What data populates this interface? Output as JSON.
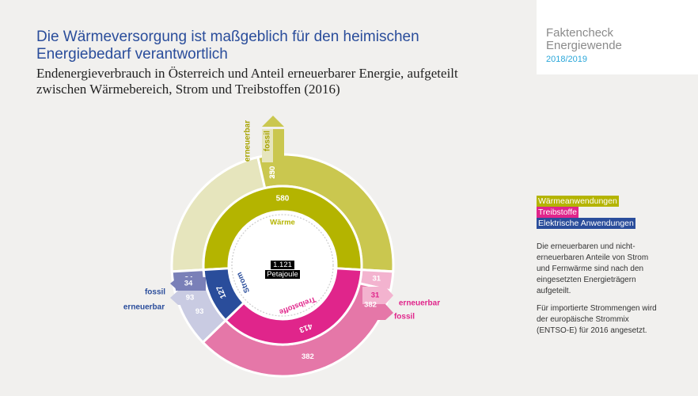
{
  "header": {
    "title": "Die Wärmeversorgung ist maßgeblich für den heimischen Energiebedarf verantwortlich",
    "subtitle": "Endenergieverbrauch in Österreich und Anteil erneuerbarer Energie, aufgeteilt zwischen Wärmebereich, Strom und Treibstoffen (2016)"
  },
  "brand": {
    "line1": "Faktencheck",
    "line2": "Energiewende",
    "line3": "2018/2019"
  },
  "legend": [
    {
      "label": "Wärmeanwendungen",
      "color": "#b4b400"
    },
    {
      "label": "Treibstoffe",
      "color": "#e0258b"
    },
    {
      "label": "Elektrische Anwendungen",
      "color": "#2a4d9b"
    }
  ],
  "notes": [
    "Die erneuerbaren und nicht-erneuerbaren Anteile von Strom und Fernwärme sind nach den eingesetzten Energieträgern aufgeteilt.",
    "Für importierte Strommengen wird der europäische Strommix (ENTSO-E) für 2016 angesetzt."
  ],
  "chart_data": {
    "type": "pie",
    "total": {
      "value": "1.121",
      "unit": "Petajoule"
    },
    "inner_ring": [
      {
        "name": "Wärme",
        "value": 580,
        "color": "#b4b400"
      },
      {
        "name": "Treibstoffe",
        "value": 413,
        "color": "#e0258b"
      },
      {
        "name": "Strom",
        "value": 127,
        "color": "#2a4d9b"
      }
    ],
    "outer_ring": [
      {
        "group": "Wärme",
        "label": "erneuerbar",
        "value": 250,
        "color": "#e6e5bd"
      },
      {
        "group": "Wärme",
        "label": "fossil",
        "value": 330,
        "color": "#cac74f"
      },
      {
        "group": "Treibstoffe",
        "label": "erneuerbar",
        "value": 31,
        "color": "#f3b3cf"
      },
      {
        "group": "Treibstoffe",
        "label": "fossil",
        "value": 382,
        "color": "#e577a8"
      },
      {
        "group": "Strom",
        "label": "erneuerbar",
        "value": 93,
        "color": "#c9cbe2"
      },
      {
        "group": "Strom",
        "label": "fossil",
        "value": 34,
        "color": "#7a80b8"
      }
    ],
    "callout_labels": {
      "waerme_erneuerbar": "erneuerbar",
      "waerme_fossil": "fossil",
      "treib_erneuerbar": "erneuerbar",
      "treib_fossil": "fossil",
      "strom_fossil": "fossil",
      "strom_erneuerbar": "erneuerbar"
    }
  }
}
